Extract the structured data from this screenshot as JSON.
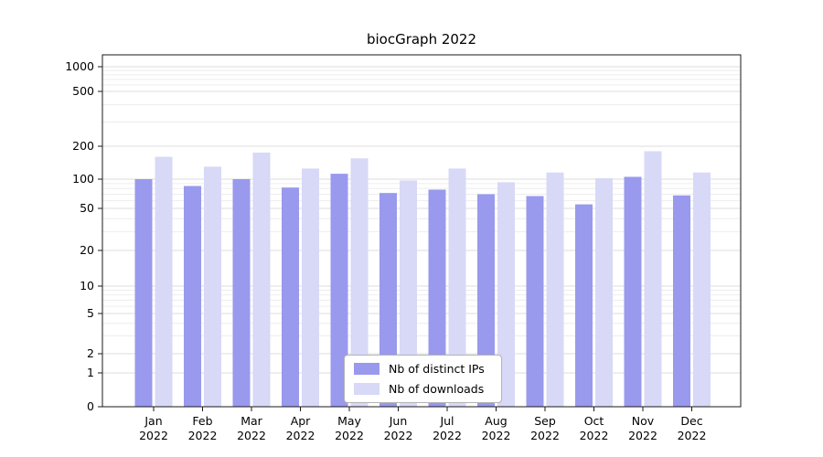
{
  "chart_data": {
    "type": "bar",
    "title": "biocGraph 2022",
    "categories": [
      "Jan",
      "Feb",
      "Mar",
      "Apr",
      "May",
      "Jun",
      "Jul",
      "Aug",
      "Sep",
      "Oct",
      "Nov",
      "Dec"
    ],
    "x_tick_second_line": "2022",
    "series": [
      {
        "name": "Nb of distinct IPs",
        "color": "#9999ee",
        "values": [
          100,
          85,
          100,
          82,
          112,
          72,
          78,
          70,
          67,
          55,
          105,
          68
        ]
      },
      {
        "name": "Nb of downloads",
        "color": "#d8d8f7",
        "values": [
          160,
          130,
          175,
          125,
          155,
          97,
          125,
          93,
          115,
          102,
          180,
          115
        ]
      }
    ],
    "y_ticks": [
      0,
      1,
      2,
      5,
      10,
      20,
      50,
      100,
      200,
      500,
      1000
    ],
    "scale": "log-with-zero-baseline",
    "grid": true,
    "legend_position": "bottom-center",
    "xlabel": "",
    "ylabel": ""
  },
  "style_colors": {
    "major_grid": "#dcdcdc",
    "minor_grid": "#ededed",
    "axis_box": "#1a1a1a",
    "tick_text": "#000000"
  }
}
